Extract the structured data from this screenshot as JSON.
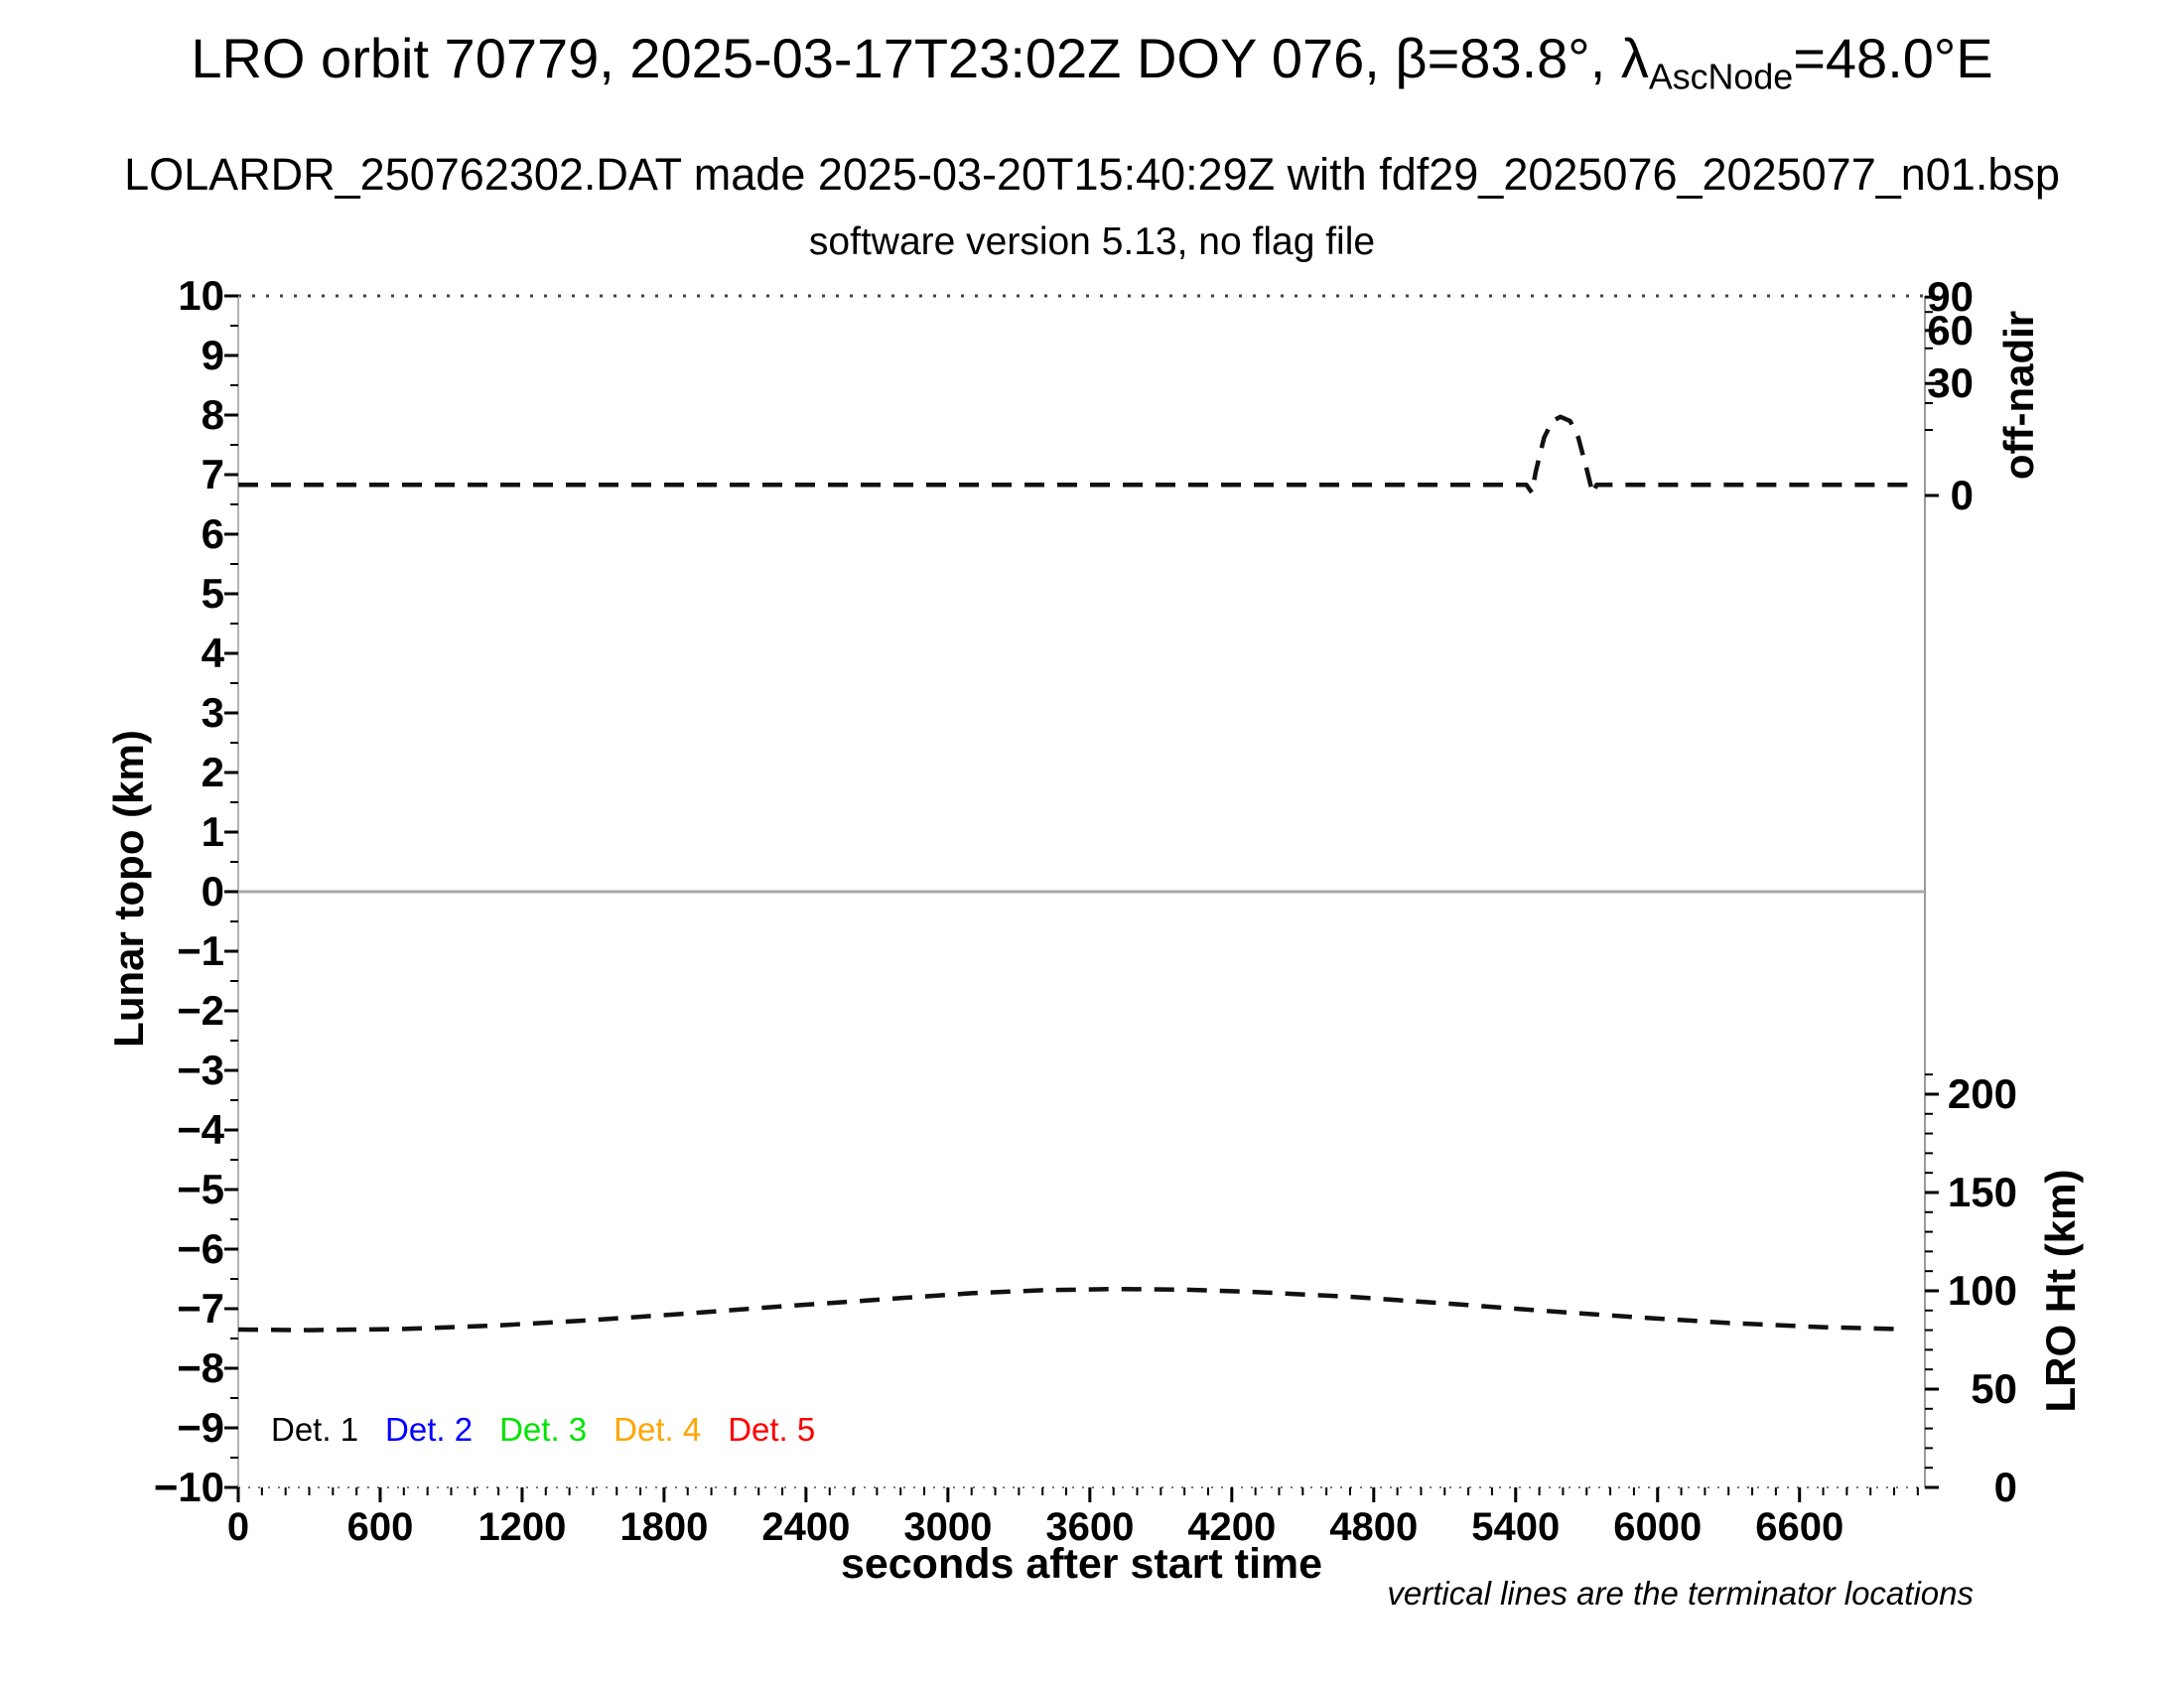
{
  "title": {
    "part1": "LRO orbit 70779, 2025-03-17T23:02Z DOY 076, β=83.8°, λ",
    "subscript": "AscNode",
    "part2": "=48.0°E"
  },
  "subtitle": "LOLARDR_250762302.DAT made 2025-03-20T15:40:29Z with fdf29_2025076_2025077_n01.bsp",
  "subtitle2": "software version 5.13, no flag file",
  "note": "vertical lines are the terminator locations",
  "axes": {
    "x_label": "seconds after start time",
    "left_label": "Lunar topo (km)",
    "right_top_label": "off-nadir",
    "right_bottom_label": "LRO Ht (km)"
  },
  "legend": {
    "items": [
      {
        "label": "Det. 1",
        "color": "#000000"
      },
      {
        "label": "Det. 2",
        "color": "#0000ff"
      },
      {
        "label": "Det. 3",
        "color": "#00e400"
      },
      {
        "label": "Det. 4",
        "color": "#ffa500"
      },
      {
        "label": "Det. 5",
        "color": "#ff0000"
      }
    ]
  },
  "chart_data": {
    "type": "line",
    "title": "LRO orbit 70779, 2025-03-17T23:02Z DOY 076, β=83.8°, λAscNode=48.0°E",
    "subtitle": "LOLARDR_250762302.DAT made 2025-03-20T15:40:29Z with fdf29_2025076_2025077_n01.bsp",
    "subtitle2": "software version 5.13, no flag file",
    "annotation": "vertical lines are the terminator locations",
    "grid": false,
    "zero_line_topo": 0,
    "x_axis": {
      "label": "seconds after start time",
      "range": [
        0,
        7130
      ],
      "major_ticks": [
        0,
        600,
        1200,
        1800,
        2400,
        3000,
        3600,
        4200,
        4800,
        5400,
        6000,
        6600
      ],
      "minor_tick_interval": 100
    },
    "y_axis_left": {
      "label": "Lunar topo (km)",
      "range": [
        -10,
        10
      ],
      "major_tick_interval": 1,
      "minor_tick_interval": 0.5
    },
    "y_axis_right_top": {
      "label": "off-nadir",
      "unit": "degrees",
      "scale": "nonlinear",
      "tick_values": [
        90,
        60,
        30,
        0
      ],
      "tick_pos_topo": [
        9.98,
        9.42,
        8.53,
        6.65
      ],
      "minor_tick_pos_topo": [
        9.73,
        9.12,
        8.2,
        7.75
      ]
    },
    "y_axis_right_bottom": {
      "label": "LRO Ht (km)",
      "tick_values": [
        200,
        150,
        100,
        50,
        0
      ],
      "km_per_topo_unit": 30.3,
      "zero_at_topo": -10,
      "minor_tick_interval_km": 10
    },
    "series": [
      {
        "name": "off-nadir-angle-curve",
        "axis": "y_axis_right_top",
        "style": "dashed",
        "color": "#111111",
        "points_topo": [
          [
            0,
            6.83
          ],
          [
            5445,
            6.83
          ],
          [
            5468,
            6.7
          ],
          [
            5485,
            7.05
          ],
          [
            5520,
            7.62
          ],
          [
            5555,
            7.9
          ],
          [
            5590,
            7.97
          ],
          [
            5630,
            7.9
          ],
          [
            5665,
            7.62
          ],
          [
            5700,
            7.1
          ],
          [
            5726,
            6.68
          ],
          [
            5742,
            6.83
          ],
          [
            7110,
            6.83
          ]
        ],
        "approx_values_deg": [
          [
            0,
            3
          ],
          [
            5445,
            3
          ],
          [
            5468,
            0
          ],
          [
            5590,
            20
          ],
          [
            5726,
            0
          ],
          [
            5742,
            3
          ],
          [
            7110,
            3
          ]
        ]
      },
      {
        "name": "lro-height-curve",
        "axis": "y_axis_right_bottom",
        "style": "dashed",
        "color": "#111111",
        "points_topo": [
          [
            0,
            -7.35
          ],
          [
            300,
            -7.36
          ],
          [
            700,
            -7.34
          ],
          [
            1100,
            -7.28
          ],
          [
            1500,
            -7.19
          ],
          [
            1900,
            -7.08
          ],
          [
            2300,
            -6.96
          ],
          [
            2700,
            -6.85
          ],
          [
            3100,
            -6.74
          ],
          [
            3400,
            -6.69
          ],
          [
            3700,
            -6.67
          ],
          [
            4000,
            -6.68
          ],
          [
            4300,
            -6.72
          ],
          [
            4700,
            -6.8
          ],
          [
            5100,
            -6.91
          ],
          [
            5500,
            -7.03
          ],
          [
            5900,
            -7.14
          ],
          [
            6300,
            -7.24
          ],
          [
            6700,
            -7.31
          ],
          [
            7000,
            -7.34
          ]
        ],
        "approx_values_km": [
          [
            0,
            80
          ],
          [
            1200,
            83
          ],
          [
            2400,
            93
          ],
          [
            3700,
            101
          ],
          [
            4800,
            96
          ],
          [
            6000,
            86
          ],
          [
            7000,
            80
          ]
        ]
      }
    ],
    "legend_entries": [
      "Det. 1",
      "Det. 2",
      "Det. 3",
      "Det. 4",
      "Det. 5"
    ],
    "legend_colors": [
      "#000000",
      "#0000ff",
      "#00e400",
      "#ffa500",
      "#ff0000"
    ]
  }
}
